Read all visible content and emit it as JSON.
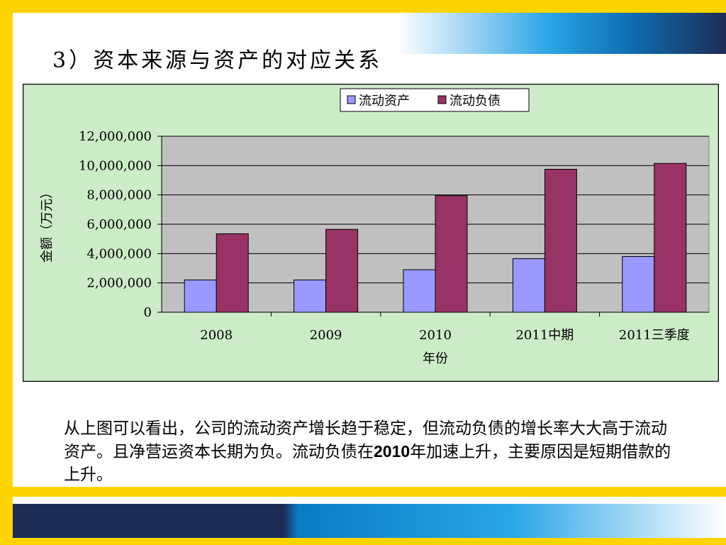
{
  "title": "3）资本来源与资产的对应关系",
  "body": {
    "part1": "从上图可以看出，公司的流动资产增长趋于稳定，但流动负债的增长率大大高于流动资产。且净营运资本长期为负。流动负债在",
    "year": "2010",
    "part2": "年加速上升，主要原因是短期借款的上升。"
  },
  "colors": {
    "series_1": "#9999ff",
    "series_2": "#993366",
    "plot_bg": "#c0c0c0",
    "chart_bg": "#ccecc7"
  },
  "chart_data": {
    "type": "bar",
    "title": "",
    "xlabel": "年份",
    "ylabel": "金额（万元）",
    "categories": [
      "2008",
      "2009",
      "2010",
      "2011中期",
      "2011三季度"
    ],
    "series": [
      {
        "name": "流动资产",
        "values": [
          2200000,
          2200000,
          2900000,
          3650000,
          3800000
        ]
      },
      {
        "name": "流动负债",
        "values": [
          5350000,
          5650000,
          7950000,
          9750000,
          10150000
        ]
      }
    ],
    "ylim": [
      0,
      12000000
    ],
    "yticks": [
      "0",
      "2,000,000",
      "4,000,000",
      "6,000,000",
      "8,000,000",
      "10,000,000",
      "12,000,000"
    ],
    "grid": true,
    "legend": "top-right"
  }
}
